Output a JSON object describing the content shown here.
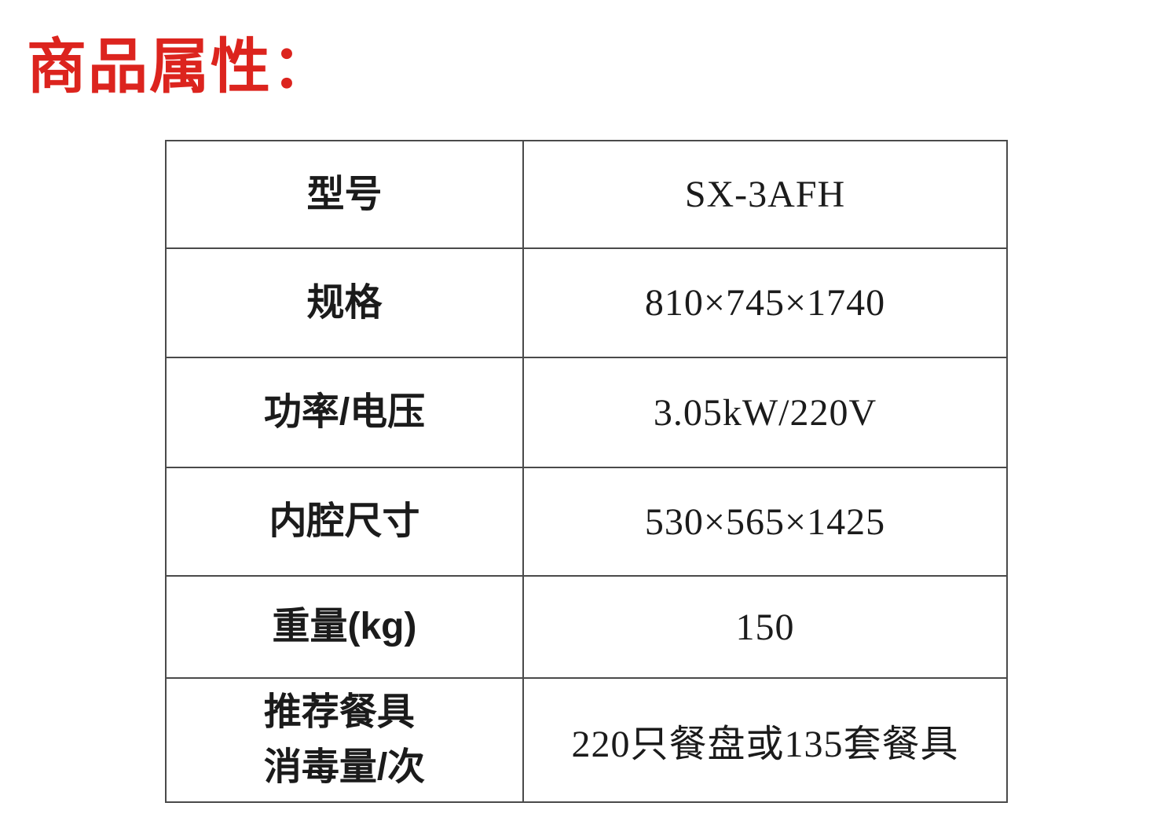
{
  "page": {
    "title": "商品属性："
  },
  "colors": {
    "title": "#dc241e",
    "table_border": "#4a4a4a",
    "text": "#1b1b1b"
  },
  "table": {
    "rows": [
      {
        "label": "型号",
        "value": "SX-3AFH"
      },
      {
        "label": "规格",
        "value": "810×745×1740"
      },
      {
        "label": "功率/电压",
        "value": "3.05kW/220V"
      },
      {
        "label": "内腔尺寸",
        "value": "530×565×1425"
      },
      {
        "label": "重量(kg)",
        "value": "150"
      },
      {
        "label": "推荐餐具\n消毒量/次",
        "value": "220只餐盘或135套餐具"
      }
    ]
  }
}
